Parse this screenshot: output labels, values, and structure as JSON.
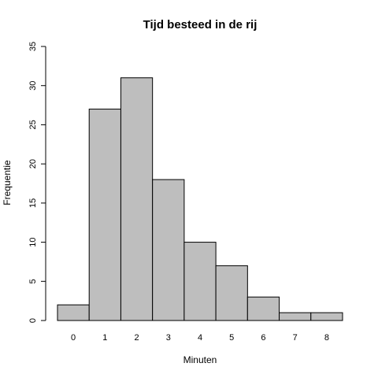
{
  "chart_data": {
    "type": "bar",
    "title": "Tijd besteed in de rij",
    "xlabel": "Minuten",
    "ylabel": "Frequentie",
    "categories": [
      "0",
      "1",
      "2",
      "3",
      "4",
      "5",
      "6",
      "7",
      "8"
    ],
    "values": [
      2,
      27,
      31,
      18,
      10,
      7,
      3,
      1,
      1
    ],
    "ylim": [
      0,
      35
    ],
    "yticks": [
      0,
      5,
      10,
      15,
      20,
      25,
      30,
      35
    ],
    "grid": false,
    "bar_color": "#bebebe",
    "edge_color": "#000000"
  }
}
